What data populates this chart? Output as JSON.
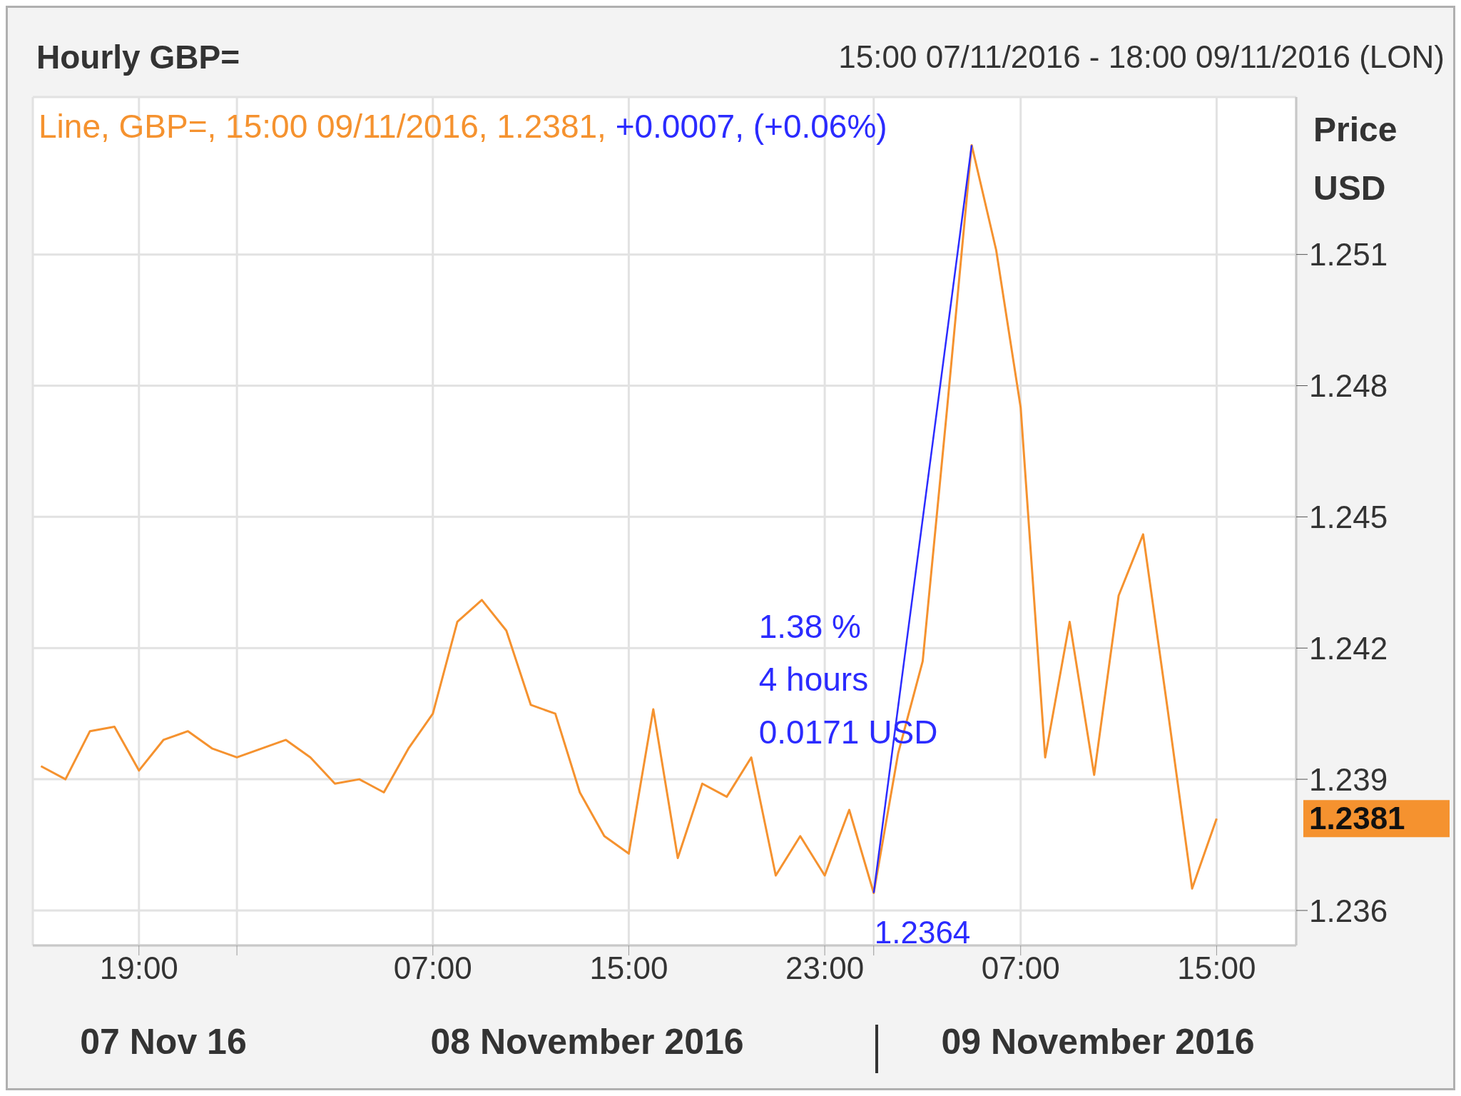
{
  "chart_data": {
    "type": "line",
    "title": "Hourly GBP=",
    "subtitle": "15:00 07/11/2016 - 18:00 09/11/2016 (LON)",
    "ylabel": "Price USD",
    "annotations": [
      "Line, GBP=, 15:00 09/11/2016, 1.2381,",
      "+0.0007, (+0.06%)",
      "1.38 %",
      "4 hours",
      "0.0171 USD",
      {
        "text": "1.2364",
        "x": "2016-11-09T01:00",
        "y": 1.2364
      },
      "07 Nov 16",
      "08 November 2016",
      "09 November 2016",
      {
        "text": "1.2381",
        "x": "2016-11-09T15:00",
        "y": 1.2381
      }
    ],
    "series": [
      {
        "color": "#f5922f",
        "x": [
          "2016-11-07T15:00",
          "2016-11-07T16:00",
          "2016-11-07T17:00",
          "2016-11-07T18:00",
          "2016-11-07T19:00",
          "2016-11-07T20:00",
          "2016-11-07T21:00",
          "2016-11-07T22:00",
          "2016-11-07T23:00",
          "2016-11-08T00:00",
          "2016-11-08T01:00",
          "2016-11-08T02:00",
          "2016-11-08T03:00",
          "2016-11-08T04:00",
          "2016-11-08T05:00",
          "2016-11-08T06:00",
          "2016-11-08T07:00",
          "2016-11-08T08:00",
          "2016-11-08T09:00",
          "2016-11-08T10:00",
          "2016-11-08T11:00",
          "2016-11-08T12:00",
          "2016-11-08T13:00",
          "2016-11-08T14:00",
          "2016-11-08T15:00",
          "2016-11-08T16:00",
          "2016-11-08T17:00",
          "2016-11-08T18:00",
          "2016-11-08T19:00",
          "2016-11-08T20:00",
          "2016-11-08T21:00",
          "2016-11-08T22:00",
          "2016-11-08T23:00",
          "2016-11-09T00:00",
          "2016-11-09T01:00",
          "2016-11-09T02:00",
          "2016-11-09T03:00",
          "2016-11-09T04:00",
          "2016-11-09T05:00",
          "2016-11-09T06:00",
          "2016-11-09T07:00",
          "2016-11-09T08:00",
          "2016-11-09T09:00",
          "2016-11-09T10:00",
          "2016-11-09T11:00",
          "2016-11-09T12:00",
          "2016-11-09T13:00",
          "2016-11-09T14:00",
          "2016-11-09T15:00"
        ],
        "values": [
          1.2393,
          1.239,
          1.2401,
          1.2402,
          1.2392,
          1.2399,
          1.2401,
          1.2397,
          1.2395,
          1.2397,
          1.2399,
          1.2395,
          1.2389,
          1.239,
          1.2387,
          1.2397,
          1.2405,
          1.2426,
          1.2431,
          1.2424,
          1.2407,
          1.2405,
          1.2387,
          1.2377,
          1.2373,
          1.2406,
          1.2372,
          1.2389,
          1.2386,
          1.2395,
          1.2368,
          1.2377,
          1.2368,
          1.2383,
          1.2364,
          1.2396,
          1.2417,
          1.2475,
          1.2535,
          1.2511,
          1.2475,
          1.2395,
          1.2426,
          1.2391,
          1.2432,
          1.2446,
          1.2406,
          1.2365,
          1.2381
        ]
      },
      {
        "color": "#2b2bff",
        "x": [
          "2016-11-09T01:00",
          "2016-11-09T05:00"
        ],
        "values": [
          1.2364,
          1.2535
        ]
      }
    ],
    "xlim": [
      "2016-11-07T14:40",
      "2016-11-09T18:15"
    ],
    "xticks": [
      {
        "value": "2016-11-07T19:00",
        "label": "19:00"
      },
      {
        "value": "2016-11-07T23:00",
        "label": null
      },
      {
        "value": "2016-11-08T07:00",
        "label": "07:00"
      },
      {
        "value": "2016-11-08T15:00",
        "label": "15:00"
      },
      {
        "value": "2016-11-08T23:00",
        "label": "23:00"
      },
      {
        "value": "2016-11-09T01:00",
        "label": null
      },
      {
        "value": "2016-11-09T07:00",
        "label": "07:00"
      },
      {
        "value": "2016-11-09T15:00",
        "label": "15:00"
      }
    ],
    "ylim": [
      1.2352,
      1.2546
    ],
    "yticks": [
      1.236,
      1.239,
      1.242,
      1.245,
      1.248,
      1.251
    ],
    "grid": true
  }
}
